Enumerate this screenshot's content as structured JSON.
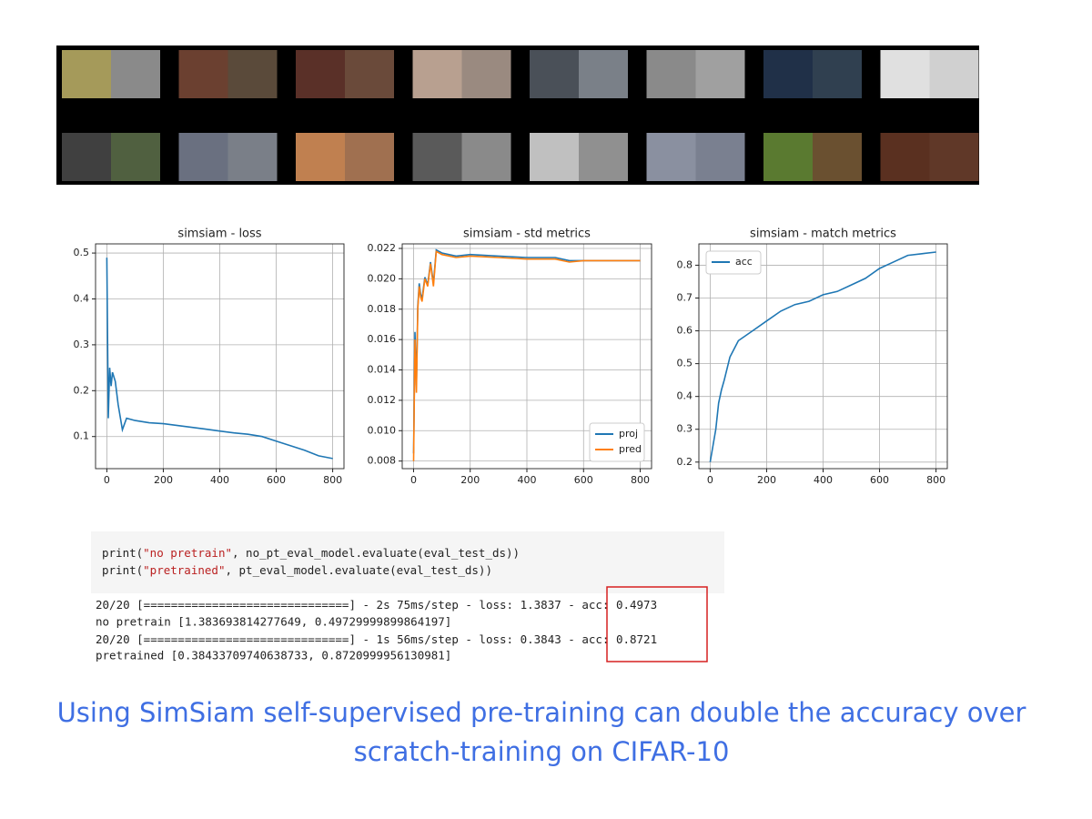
{
  "chart_data": [
    {
      "type": "line",
      "title": "simsiam - loss",
      "color": "#1f77b4",
      "grid": true,
      "x": [
        0,
        5,
        10,
        15,
        20,
        30,
        40,
        55,
        70,
        100,
        150,
        200,
        250,
        300,
        350,
        400,
        450,
        500,
        550,
        600,
        650,
        700,
        750,
        800
      ],
      "values": [
        0.49,
        0.14,
        0.25,
        0.21,
        0.24,
        0.22,
        0.17,
        0.115,
        0.14,
        0.135,
        0.13,
        0.128,
        0.124,
        0.12,
        0.116,
        0.112,
        0.108,
        0.105,
        0.1,
        0.09,
        0.08,
        0.07,
        0.058,
        0.052
      ],
      "xlim": [
        -40,
        840
      ],
      "ylim": [
        0.03,
        0.52
      ],
      "xticks": [
        0,
        200,
        400,
        600,
        800
      ],
      "yticks": [
        0.1,
        0.2,
        0.3,
        0.4,
        0.5
      ]
    },
    {
      "type": "line",
      "title": "simsiam - std metrics",
      "grid": true,
      "legend": "lower right",
      "x": [
        0,
        5,
        10,
        15,
        20,
        25,
        30,
        40,
        50,
        60,
        70,
        80,
        100,
        150,
        200,
        300,
        400,
        500,
        550,
        600,
        700,
        800
      ],
      "series": [
        {
          "name": "proj",
          "color": "#1f77b4",
          "values": [
            0.0085,
            0.0165,
            0.013,
            0.0182,
            0.0197,
            0.019,
            0.0187,
            0.0201,
            0.0196,
            0.0211,
            0.0197,
            0.0219,
            0.0217,
            0.0215,
            0.0216,
            0.0215,
            0.0214,
            0.0214,
            0.0212,
            0.0212,
            0.0212,
            0.0212
          ]
        },
        {
          "name": "pred",
          "color": "#ff7f0e",
          "values": [
            0.008,
            0.016,
            0.0125,
            0.018,
            0.0195,
            0.0188,
            0.0185,
            0.02,
            0.0195,
            0.021,
            0.0195,
            0.0218,
            0.0216,
            0.0214,
            0.0215,
            0.0214,
            0.0213,
            0.0213,
            0.0211,
            0.0212,
            0.0212,
            0.0212
          ]
        }
      ],
      "xlim": [
        -40,
        840
      ],
      "ylim": [
        0.0075,
        0.0223
      ],
      "xticks": [
        0,
        200,
        400,
        600,
        800
      ],
      "yticks": [
        0.008,
        {
          "value": 0.01,
          "label": "0.010"
        },
        0.012,
        0.014,
        0.016,
        0.018,
        {
          "value": 0.02,
          "label": "0.020"
        },
        0.022
      ]
    },
    {
      "type": "line",
      "title": "simsiam - match metrics",
      "grid": true,
      "legend": "upper left",
      "x": [
        0,
        10,
        20,
        30,
        40,
        50,
        70,
        100,
        150,
        200,
        250,
        300,
        350,
        400,
        450,
        500,
        550,
        600,
        650,
        700,
        750,
        800
      ],
      "series": [
        {
          "name": "acc",
          "color": "#1f77b4",
          "values": [
            0.2,
            0.25,
            0.3,
            0.38,
            0.42,
            0.45,
            0.52,
            0.57,
            0.6,
            0.63,
            0.66,
            0.68,
            0.69,
            0.71,
            0.72,
            0.74,
            0.76,
            0.79,
            0.81,
            0.83,
            0.835,
            0.84
          ]
        }
      ],
      "xlim": [
        -40,
        840
      ],
      "ylim": [
        0.18,
        0.865
      ],
      "xticks": [
        0,
        200,
        400,
        600,
        800
      ],
      "yticks": [
        0.2,
        0.3,
        0.4,
        0.5,
        0.6,
        0.7,
        0.8
      ]
    }
  ],
  "code": {
    "lines": [
      [
        "print(",
        "\"no pretrain\"",
        ", no_pt_eval_model.evaluate(eval_test_ds))"
      ],
      [
        "print(",
        "\"pretrained\"",
        ", pt_eval_model.evaluate(eval_test_ds))"
      ]
    ]
  },
  "output": {
    "lines": [
      [
        "20/20 [==============================] - 2s 75ms/step - loss: 1.3837 - ",
        "acc: 0.4973"
      ],
      [
        "no pretrain [1.383693814277649, 0.49729999899864197]"
      ],
      [
        "20/20 [==============================] - 1s 56ms/step - loss: 0.3843 - ",
        "acc: 0.8721"
      ],
      [
        "pretrained [0.38433709740638733, 0.8720999956130981]"
      ]
    ]
  },
  "caption": {
    "lines": [
      "Using SimSiam self-supervised pre-training can double the accuracy over",
      "scratch-training on CIFAR-10"
    ]
  }
}
